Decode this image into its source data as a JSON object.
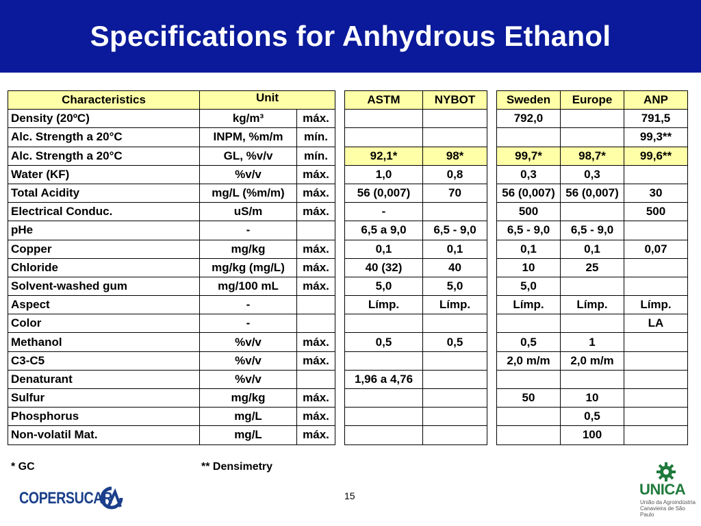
{
  "title": "Specifications for Anhydrous Ethanol",
  "header": {
    "characteristics": "Characteristics",
    "unit": "Unit",
    "astm": "ASTM",
    "nybot": "NYBOT",
    "sweden": "Sweden",
    "europe": "Europe",
    "anp": "ANP"
  },
  "rows": [
    {
      "name": "Density (20ºC)",
      "unit": "kg/m³",
      "limit": "máx.",
      "astm": "",
      "nybot": "",
      "sweden": "792,0",
      "europe": "",
      "anp": "791,5"
    },
    {
      "name": "Alc. Strength a 20°C",
      "unit": "INPM, %m/m",
      "limit": "mín.",
      "astm": "",
      "nybot": "",
      "sweden": "",
      "europe": "",
      "anp": "99,3**"
    },
    {
      "name": "Alc. Strength a 20°C",
      "unit": "GL, %v/v",
      "limit": "mín.",
      "astm": "92,1*",
      "nybot": "98*",
      "sweden": "99,7*",
      "europe": "98,7*",
      "anp": "99,6**"
    },
    {
      "name": "Water (KF)",
      "unit": "%v/v",
      "limit": "máx.",
      "astm": "1,0",
      "nybot": "0,8",
      "sweden": "0,3",
      "europe": "0,3",
      "anp": ""
    },
    {
      "name": "Total Acidity",
      "unit": "mg/L (%m/m)",
      "limit": "máx.",
      "astm": "56 (0,007)",
      "nybot": "70",
      "sweden": "56 (0,007)",
      "europe": "56 (0,007)",
      "anp": "30"
    },
    {
      "name": "Electrical Conduc.",
      "unit": "uS/m",
      "limit": "máx.",
      "astm": "-",
      "nybot": "",
      "sweden": "500",
      "europe": "",
      "anp": "500"
    },
    {
      "name": "pHe",
      "unit": "-",
      "limit": "",
      "astm": "6,5 a 9,0",
      "nybot": "6,5 - 9,0",
      "sweden": "6,5 - 9,0",
      "europe": "6,5 - 9,0",
      "anp": ""
    },
    {
      "name": "Copper",
      "unit": "mg/kg",
      "limit": "máx.",
      "astm": "0,1",
      "nybot": "0,1",
      "sweden": "0,1",
      "europe": "0,1",
      "anp": "0,07"
    },
    {
      "name": "Chloride",
      "unit": "mg/kg (mg/L)",
      "limit": "máx.",
      "astm": "40 (32)",
      "nybot": "40",
      "sweden": "10",
      "europe": "25",
      "anp": ""
    },
    {
      "name": "Solvent-washed gum",
      "unit": "mg/100 mL",
      "limit": "máx.",
      "astm": "5,0",
      "nybot": "5,0",
      "sweden": "5,0",
      "europe": "",
      "anp": ""
    },
    {
      "name": "Aspect",
      "unit": "-",
      "limit": "",
      "astm": "Límp.",
      "nybot": "Límp.",
      "sweden": "Límp.",
      "europe": "Límp.",
      "anp": "Límp."
    },
    {
      "name": "Color",
      "unit": "-",
      "limit": "",
      "astm": "",
      "nybot": "",
      "sweden": "",
      "europe": "",
      "anp": "LA"
    },
    {
      "name": "Methanol",
      "unit": "%v/v",
      "limit": "máx.",
      "astm": "0,5",
      "nybot": "0,5",
      "sweden": "0,5",
      "europe": "1",
      "anp": ""
    },
    {
      "name": "C3-C5",
      "unit": "%v/v",
      "limit": "máx.",
      "astm": "",
      "nybot": "",
      "sweden": "2,0 m/m",
      "europe": "2,0 m/m",
      "anp": ""
    },
    {
      "name": "Denaturant",
      "unit": "%v/v",
      "limit": "",
      "astm": "1,96 a 4,76",
      "nybot": "",
      "sweden": "",
      "europe": "",
      "anp": ""
    },
    {
      "name": "Sulfur",
      "unit": "mg/kg",
      "limit": "máx.",
      "astm": "",
      "nybot": "",
      "sweden": "50",
      "europe": "10",
      "anp": ""
    },
    {
      "name": "Phosphorus",
      "unit": "mg/L",
      "limit": "máx.",
      "astm": "",
      "nybot": "",
      "sweden": "",
      "europe": "0,5",
      "anp": ""
    },
    {
      "name": "Non-volatil Mat.",
      "unit": "mg/L",
      "limit": "máx.",
      "astm": "",
      "nybot": "",
      "sweden": "",
      "europe": "100",
      "anp": ""
    }
  ],
  "highlight_row_index": 2,
  "footnotes": {
    "gc": "* GC",
    "densimetry": "** Densimetry"
  },
  "page_number": "15",
  "logos": {
    "copersucar": "COPERSUCAR",
    "unica": "UNICA",
    "unica_subtitle": "União da Agroindústria Canavieira de São Paulo"
  },
  "colors": {
    "title_bar": "#0a1a9a",
    "header_fill": "#ffffa8",
    "highlight_fill": "#ffffa8",
    "copersucar_blue": "#1b3f8a",
    "unica_green": "#1f7a3c"
  }
}
